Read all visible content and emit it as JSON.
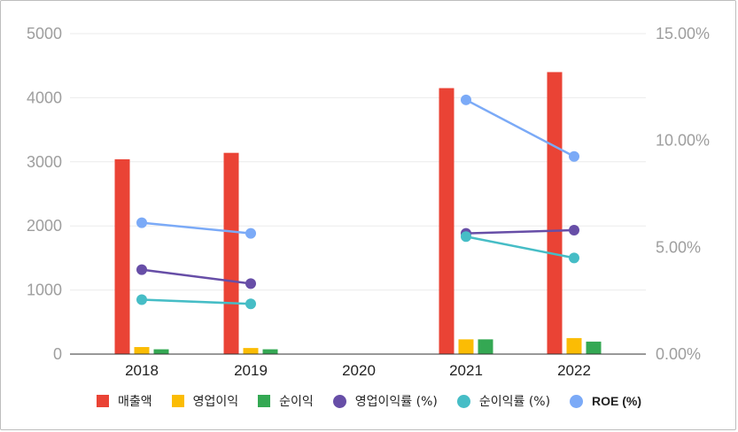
{
  "chart_data": {
    "type": "bar+line",
    "categories": [
      "2018",
      "2019",
      "2020",
      "2021",
      "2022"
    ],
    "left_axis": {
      "ticks": [
        "0",
        "1000",
        "2000",
        "3000",
        "4000",
        "5000"
      ],
      "min": 0,
      "max": 5000
    },
    "right_axis": {
      "ticks": [
        "0.00%",
        "5.00%",
        "10.00%",
        "15.00%"
      ],
      "min": 0,
      "max": 15
    },
    "bar_series": [
      {
        "name": "매출액",
        "color": "#ea4335",
        "values": [
          3040,
          3140,
          null,
          4150,
          4400
        ]
      },
      {
        "name": "영업이익",
        "color": "#fbbc04",
        "values": [
          110,
          95,
          null,
          230,
          250
        ]
      },
      {
        "name": "순이익",
        "color": "#34a853",
        "values": [
          75,
          75,
          null,
          230,
          195
        ]
      }
    ],
    "line_series": [
      {
        "name": "영업이익률 (%)",
        "color": "#674ea7",
        "values": [
          3.95,
          3.3,
          null,
          5.65,
          5.8
        ]
      },
      {
        "name": "순이익률 (%)",
        "color": "#46bdc6",
        "values": [
          2.55,
          2.35,
          null,
          5.5,
          4.5
        ]
      },
      {
        "name": "ROE (%)",
        "color": "#7baaf7",
        "values": [
          6.15,
          5.65,
          null,
          11.9,
          9.25
        ]
      }
    ],
    "legend_position": "bottom",
    "grid": true
  }
}
